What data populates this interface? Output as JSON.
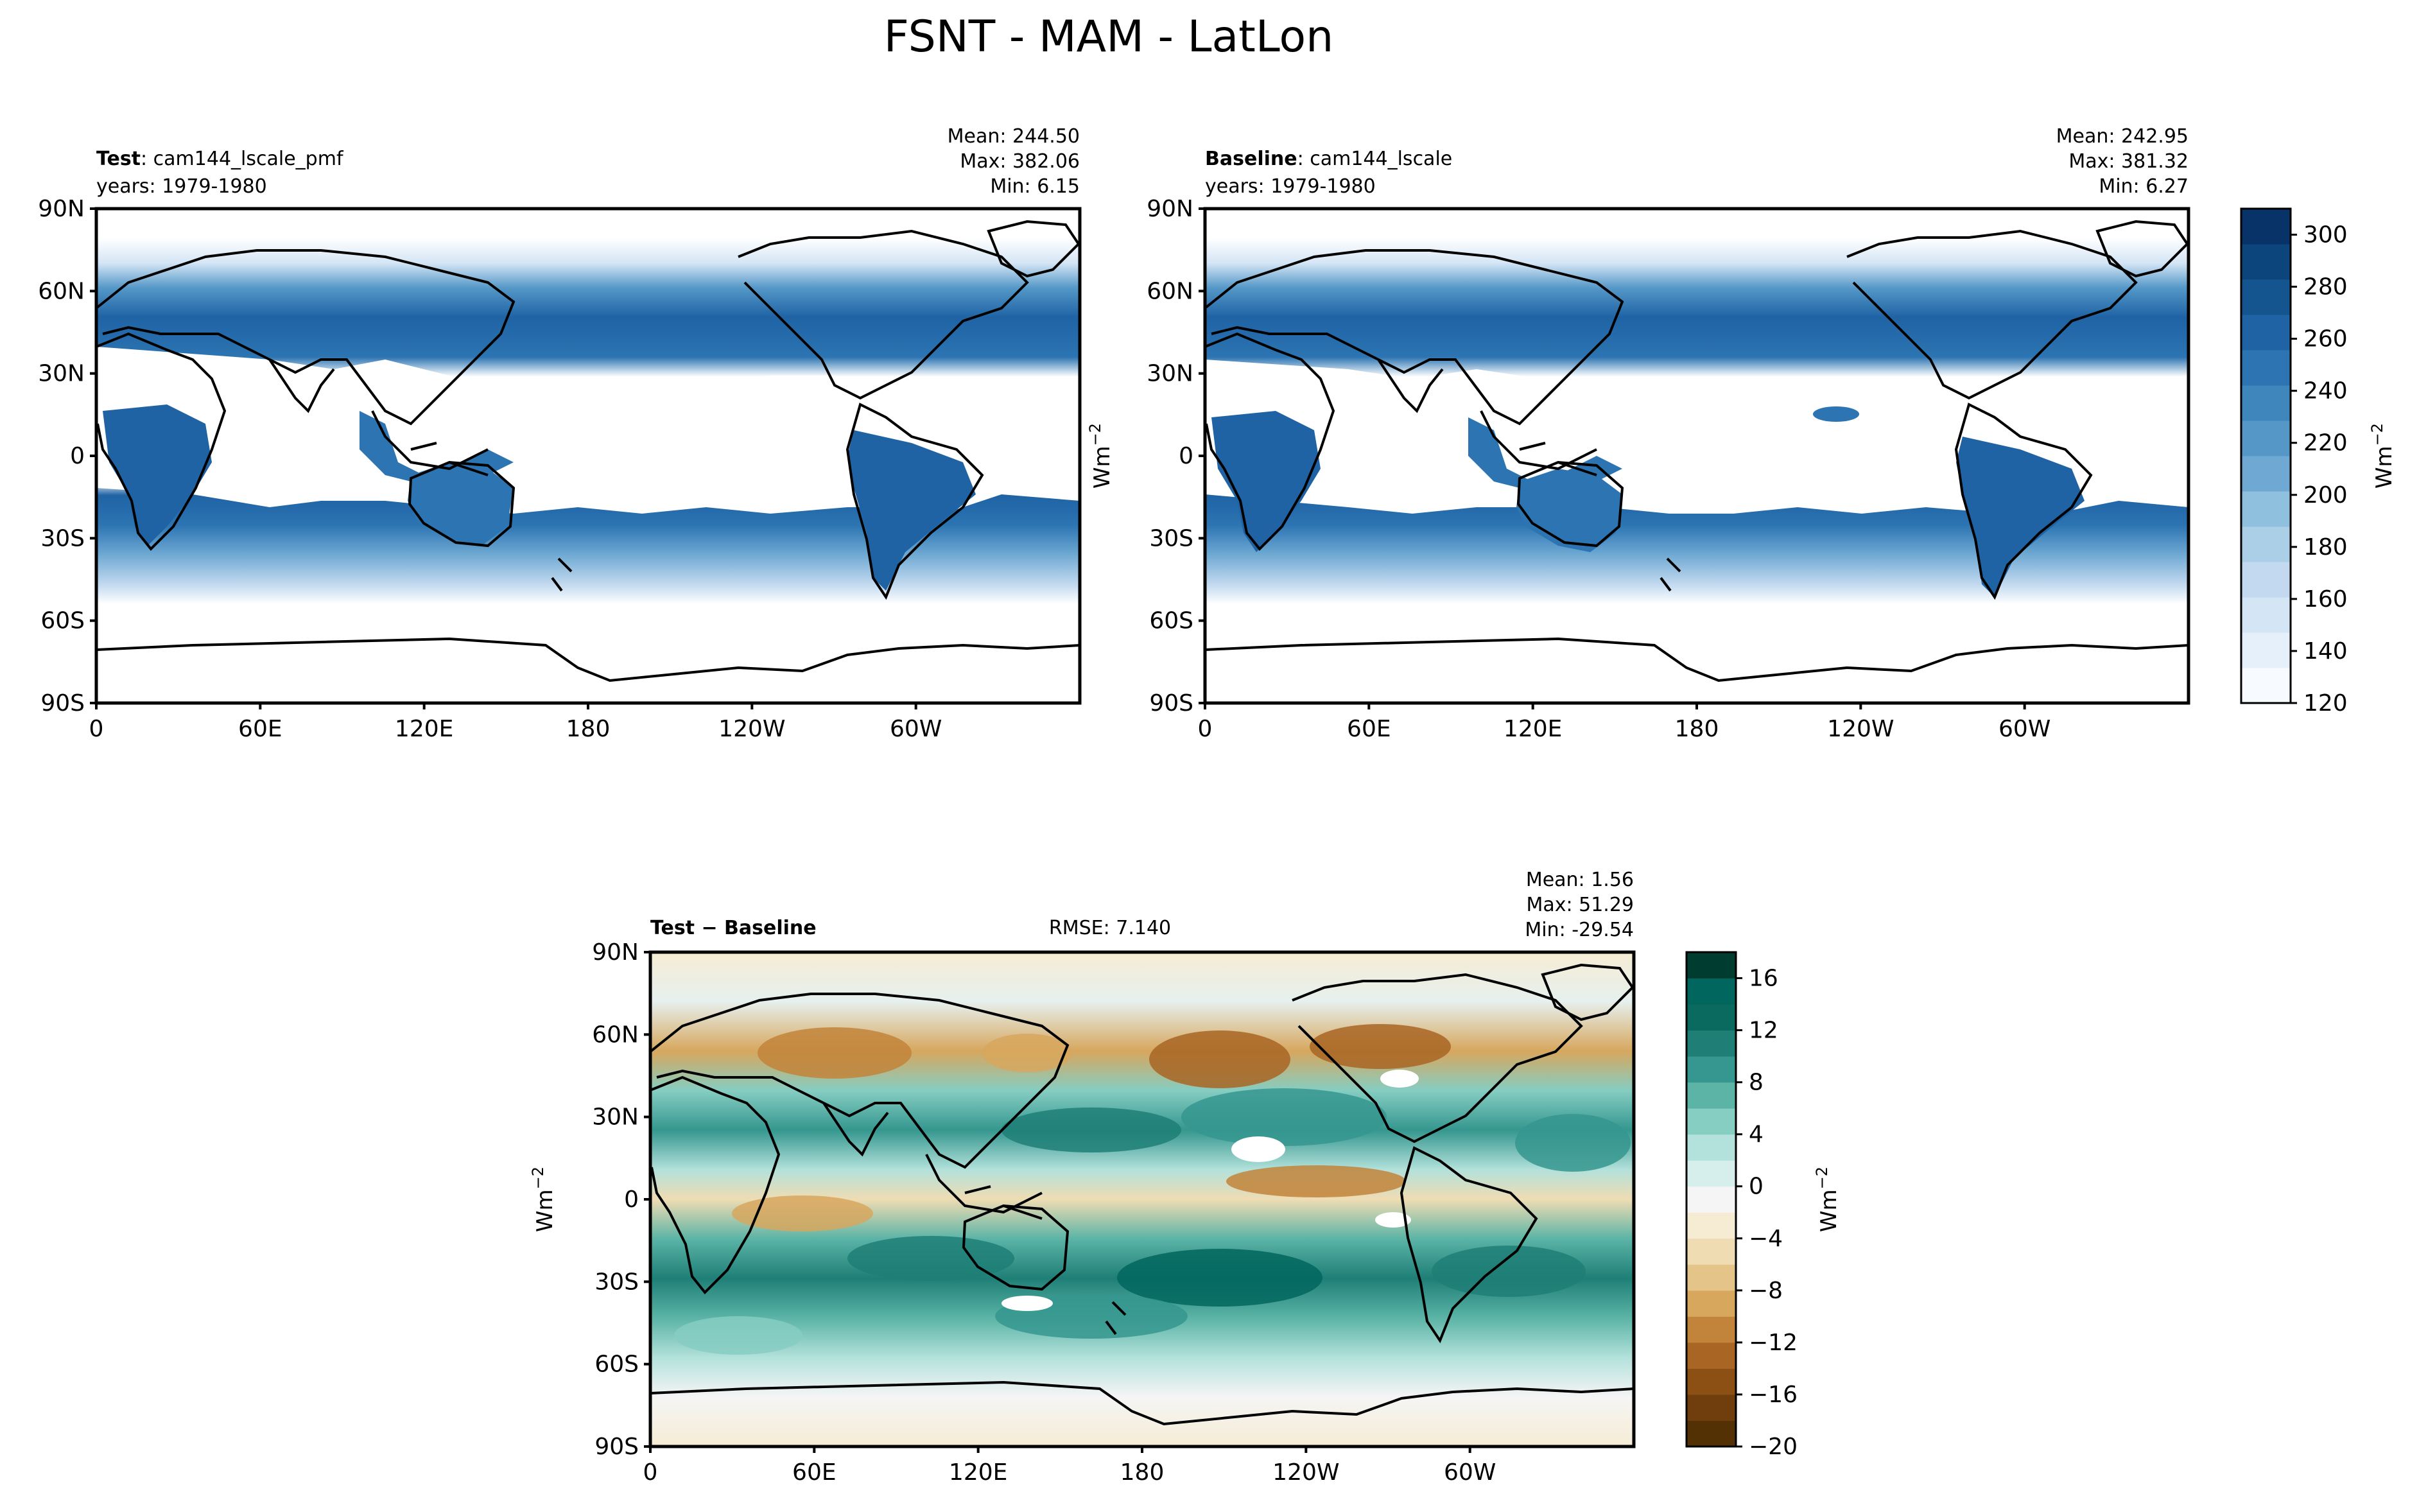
{
  "figure": {
    "title": "FSNT - MAM - LatLon"
  },
  "colors": {
    "frame": "#000000",
    "coast": "#000000",
    "blues": [
      "#f7fbff",
      "#e6f0fa",
      "#d4e5f5",
      "#c2d9ef",
      "#aacfe6",
      "#8fc0de",
      "#6fa9d3",
      "#5598c8",
      "#3f86bc",
      "#2c74b2",
      "#1f63a5",
      "#14548f",
      "#0c457c",
      "#083369"
    ],
    "brbg_pos": [
      "#f5f5f5",
      "#d6eeec",
      "#b3e1db",
      "#86cdc2",
      "#5bb4a6",
      "#35978f",
      "#1f7f77",
      "#0b6a5f",
      "#01665e",
      "#003c30"
    ],
    "brbg_neg": [
      "#f6ecd4",
      "#efdcb3",
      "#e5c48a",
      "#d7a75e",
      "#c2843a",
      "#a86523",
      "#8c5014",
      "#6f3e0c",
      "#543005"
    ]
  },
  "panels": [
    {
      "id": "test",
      "label_bold": "Test",
      "label_rest": ": cam144_lscale_pmf",
      "years": "years: 1979-1980",
      "stats": [
        "Mean: 244.50",
        "Max: 382.06",
        "Min:  6.15"
      ],
      "rmse": ""
    },
    {
      "id": "baseline",
      "label_bold": "Baseline",
      "label_rest": ": cam144_lscale",
      "years": "years: 1979-1980",
      "stats": [
        "Mean: 242.95",
        "Max: 381.32",
        "Min:  6.27"
      ],
      "rmse": ""
    },
    {
      "id": "diff",
      "label_bold": "Test − Baseline",
      "label_rest": "",
      "years": "",
      "stats": [
        "Mean:  1.56",
        "Max: 51.29",
        "Min: -29.54"
      ],
      "rmse": "RMSE: 7.140"
    }
  ],
  "axes": {
    "lat_ticks": [
      "90N",
      "60N",
      "30N",
      "0",
      "30S",
      "60S",
      "90S"
    ],
    "lon_ticks": [
      "0",
      "60E",
      "120E",
      "180",
      "120W",
      "60W"
    ]
  },
  "colorbars": [
    {
      "id": "main",
      "label": "Wm",
      "label_sup": "−2",
      "range": [
        120,
        310
      ],
      "ticks": [
        "300",
        "280",
        "260",
        "240",
        "220",
        "200",
        "180",
        "160",
        "140",
        "120"
      ],
      "tick_values": [
        300,
        280,
        260,
        240,
        220,
        200,
        180,
        160,
        140,
        120
      ]
    },
    {
      "id": "diff",
      "label": "Wm",
      "label_sup": "−2",
      "range": [
        -20,
        18
      ],
      "ticks": [
        "16",
        "12",
        "8",
        "4",
        "0",
        "−4",
        "−8",
        "−12",
        "−16",
        "−20"
      ],
      "tick_values": [
        16,
        12,
        8,
        4,
        0,
        -4,
        -8,
        -12,
        -16,
        -20
      ]
    }
  ],
  "side_labels": [
    {
      "id": "top-right",
      "text": "Wm",
      "sup": "−2"
    },
    {
      "id": "bottom-left",
      "text": "Wm",
      "sup": "−2"
    }
  ],
  "chart_data": [
    {
      "type": "heatmap",
      "title": "Test: cam144_lscale_pmf",
      "variable": "FSNT",
      "season": "MAM",
      "units": "Wm^-2",
      "x_range": [
        0,
        360
      ],
      "y_range": [
        -90,
        90
      ],
      "color_range": [
        120,
        310
      ],
      "stats": {
        "mean": 244.5,
        "max": 382.06,
        "min": 6.15
      }
    },
    {
      "type": "heatmap",
      "title": "Baseline: cam144_lscale",
      "variable": "FSNT",
      "season": "MAM",
      "units": "Wm^-2",
      "x_range": [
        0,
        360
      ],
      "y_range": [
        -90,
        90
      ],
      "color_range": [
        120,
        310
      ],
      "stats": {
        "mean": 242.95,
        "max": 381.32,
        "min": 6.27
      }
    },
    {
      "type": "heatmap",
      "title": "Test − Baseline",
      "variable": "FSNT",
      "season": "MAM",
      "units": "Wm^-2",
      "x_range": [
        0,
        360
      ],
      "y_range": [
        -90,
        90
      ],
      "color_range": [
        -20,
        18
      ],
      "stats": {
        "mean": 1.56,
        "max": 51.29,
        "min": -29.54,
        "rmse": 7.14
      }
    }
  ]
}
